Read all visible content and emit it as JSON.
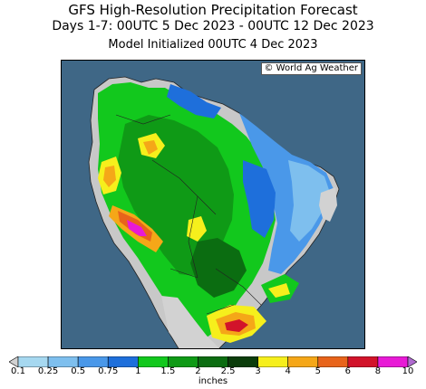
{
  "title": {
    "line1": "GFS High-Resolution Precipitation Forecast",
    "line2": "Days 1-7: 00UTC 5 Dec 2023 - 00UTC 12 Dec 2023",
    "line3": "Model Initialized 00UTC 4 Dec 2023"
  },
  "map": {
    "credit": "© World Ag Weather",
    "ocean_color": "#3f6786",
    "land_color": "#c8c8c8"
  },
  "colorbar": {
    "ticks": [
      "0.1",
      "0.25",
      "0.5",
      "0.75",
      "1",
      "1.5",
      "2",
      "2.5",
      "3",
      "4",
      "5",
      "6",
      "8",
      "10"
    ],
    "colors": [
      "#d2d2d2",
      "#a6d8f0",
      "#7ebfee",
      "#4a98e9",
      "#1e6fdb",
      "#12c81d",
      "#0f9a16",
      "#0b6d11",
      "#0b3d0b",
      "#f6ef1c",
      "#f5a718",
      "#e8641b",
      "#d2132a",
      "#e81ad6",
      "#b06bd0"
    ],
    "units": "inches"
  }
}
